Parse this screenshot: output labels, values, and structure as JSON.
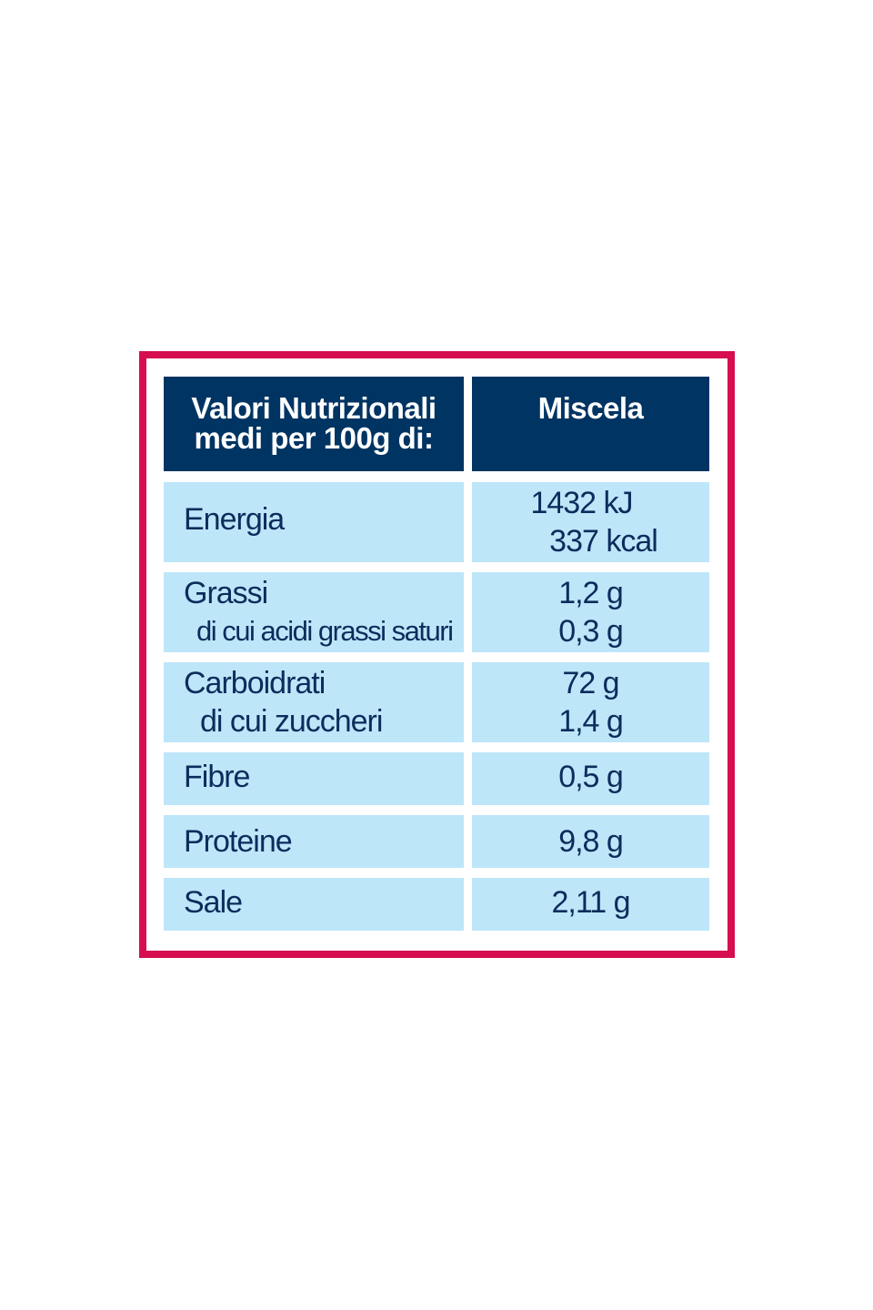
{
  "header": {
    "label_line1": "Valori Nutrizionali",
    "label_line2": "medi per 100g di:",
    "column": "Miscela"
  },
  "rows": [
    {
      "label": [
        "Energia"
      ],
      "values": [
        "1432 kJ",
        "337 kcal"
      ]
    },
    {
      "label": [
        "Grassi",
        "di cui acidi grassi saturi"
      ],
      "values": [
        "1,2 g",
        "0,3 g"
      ]
    },
    {
      "label": [
        "Carboidrati",
        "di cui zuccheri"
      ],
      "values": [
        "72 g",
        "1,4 g"
      ]
    },
    {
      "label": [
        "Fibre"
      ],
      "values": [
        "0,5 g"
      ]
    },
    {
      "label": [
        "Proteine"
      ],
      "values": [
        "9,8 g"
      ]
    },
    {
      "label": [
        "Sale"
      ],
      "values": [
        "2,11 g"
      ]
    }
  ],
  "colors": {
    "border": "#d60d4f",
    "header_bg": "#003462",
    "cell_bg": "#bde6f9",
    "text": "#0a2d5c"
  }
}
